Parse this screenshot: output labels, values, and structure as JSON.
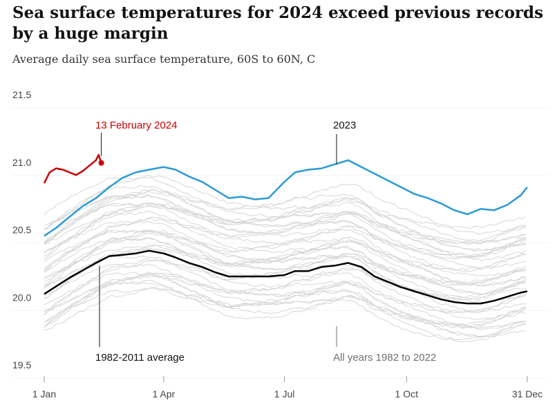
{
  "chart_data": {
    "type": "line",
    "title": "Sea surface temperatures for 2024 exceed previous records by a huge margin",
    "subtitle": "Average daily sea surface temperature, 60S to 60N, C",
    "xlabel": "",
    "ylabel": "",
    "xlim": [
      1,
      365
    ],
    "ylim": [
      19.5,
      21.5
    ],
    "y_ticks": [
      21.5,
      21.0,
      20.5,
      20.0,
      19.5
    ],
    "y_tick_labels": [
      "21.5",
      "21.0",
      "20.5",
      "20.0",
      "19.5"
    ],
    "x_ticks": [
      1,
      91,
      182,
      274,
      365
    ],
    "x_tick_labels": [
      "1 Jan",
      "1 Apr",
      "1 Jul",
      "1 Oct",
      "31 Dec"
    ],
    "grid": true,
    "series": [
      {
        "name": "2024",
        "color": "#c70000",
        "x": [
          1,
          5,
          10,
          15,
          20,
          25,
          30,
          35,
          40,
          42,
          44
        ],
        "y": [
          20.85,
          20.93,
          20.96,
          20.95,
          20.93,
          20.91,
          20.94,
          20.98,
          21.02,
          21.06,
          21.0
        ]
      },
      {
        "name": "2023",
        "color": "#2a9ad6",
        "x": [
          1,
          10,
          20,
          30,
          40,
          50,
          60,
          70,
          80,
          91,
          100,
          110,
          120,
          130,
          140,
          150,
          160,
          170,
          182,
          190,
          200,
          210,
          220,
          230,
          240,
          250,
          260,
          270,
          280,
          290,
          300,
          310,
          320,
          330,
          340,
          350,
          360,
          365
        ],
        "y": [
          20.46,
          20.52,
          20.6,
          20.68,
          20.74,
          20.82,
          20.89,
          20.93,
          20.95,
          20.97,
          20.95,
          20.9,
          20.86,
          20.8,
          20.74,
          20.75,
          20.73,
          20.74,
          20.86,
          20.93,
          20.95,
          20.96,
          20.99,
          21.02,
          20.97,
          20.92,
          20.87,
          20.82,
          20.77,
          20.74,
          20.7,
          20.65,
          20.62,
          20.66,
          20.65,
          20.69,
          20.76,
          20.82
        ]
      },
      {
        "name": "1982-2011 average",
        "color": "#000000",
        "x": [
          1,
          20,
          40,
          50,
          60,
          70,
          80,
          91,
          100,
          110,
          120,
          130,
          140,
          160,
          170,
          182,
          190,
          200,
          210,
          220,
          230,
          240,
          250,
          260,
          270,
          280,
          290,
          300,
          310,
          320,
          330,
          340,
          350,
          360,
          365
        ],
        "y": [
          20.03,
          20.15,
          20.26,
          20.31,
          20.32,
          20.33,
          20.35,
          20.33,
          20.3,
          20.26,
          20.23,
          20.19,
          20.16,
          20.16,
          20.16,
          20.17,
          20.2,
          20.2,
          20.23,
          20.24,
          20.26,
          20.23,
          20.16,
          20.12,
          20.08,
          20.05,
          20.02,
          19.99,
          19.97,
          19.96,
          19.96,
          19.98,
          20.01,
          20.04,
          20.05
        ]
      }
    ],
    "background_series_label": "All years 1982 to 2022",
    "annotations": [
      {
        "text": "13 February 2024",
        "x": 44,
        "series": "2024",
        "color": "#c70000"
      },
      {
        "text": "2023",
        "x": 218,
        "series": "2023",
        "color": "#121212"
      },
      {
        "text": "1982-2011 average",
        "x": 42,
        "series": "1982-2011 average",
        "color": "#121212"
      },
      {
        "text": "All years 1982 to 2022",
        "x": 218,
        "series": "background",
        "color": "#707070"
      }
    ],
    "highlight_point": {
      "series": "2024",
      "x": 44,
      "y": 21.0
    }
  }
}
